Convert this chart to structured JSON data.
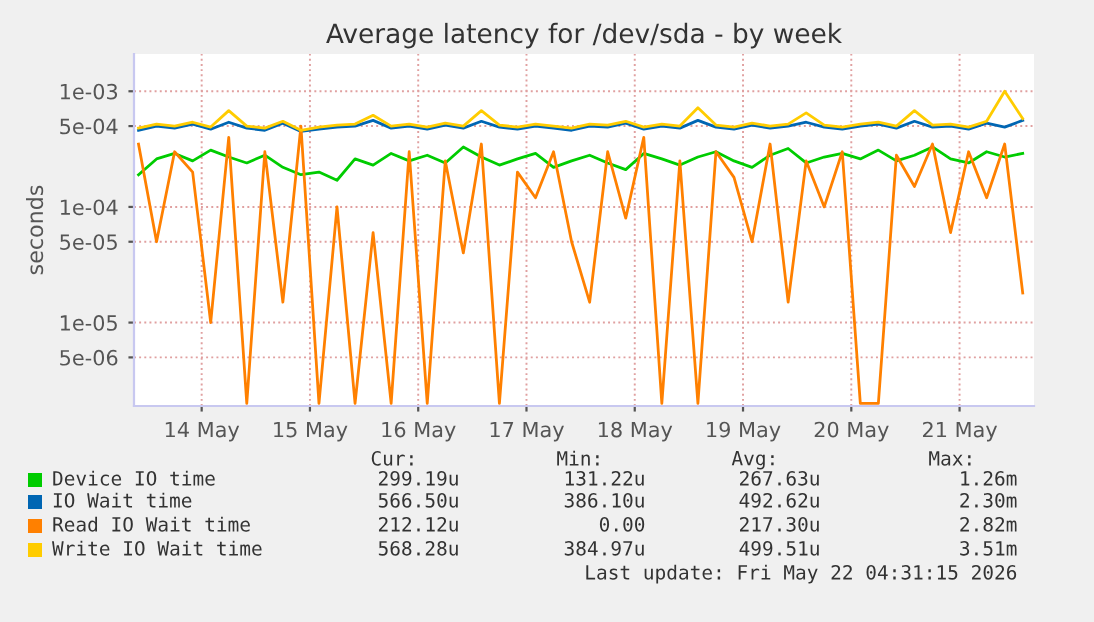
{
  "chart_data": {
    "type": "line",
    "title": "Average latency for /dev/sda - by week",
    "ylabel": "seconds",
    "x": [
      "2026-05-13T22:00",
      "2026-05-14T02:00",
      "2026-05-14T06:00",
      "2026-05-14T10:00",
      "2026-05-14T14:00",
      "2026-05-14T18:00",
      "2026-05-14T22:00",
      "2026-05-15T02:00",
      "2026-05-15T06:00",
      "2026-05-15T10:00",
      "2026-05-15T14:00",
      "2026-05-15T18:00",
      "2026-05-15T22:00",
      "2026-05-16T02:00",
      "2026-05-16T06:00",
      "2026-05-16T10:00",
      "2026-05-16T14:00",
      "2026-05-16T18:00",
      "2026-05-16T22:00",
      "2026-05-17T02:00",
      "2026-05-17T06:00",
      "2026-05-17T10:00",
      "2026-05-17T14:00",
      "2026-05-17T18:00",
      "2026-05-17T22:00",
      "2026-05-18T02:00",
      "2026-05-18T06:00",
      "2026-05-18T10:00",
      "2026-05-18T14:00",
      "2026-05-18T18:00",
      "2026-05-18T22:00",
      "2026-05-19T02:00",
      "2026-05-19T06:00",
      "2026-05-19T10:00",
      "2026-05-19T14:00",
      "2026-05-19T18:00",
      "2026-05-19T22:00",
      "2026-05-20T02:00",
      "2026-05-20T06:00",
      "2026-05-20T10:00",
      "2026-05-20T14:00",
      "2026-05-20T18:00",
      "2026-05-20T22:00",
      "2026-05-21T02:00",
      "2026-05-21T06:00",
      "2026-05-21T10:00",
      "2026-05-21T14:00",
      "2026-05-21T18:00",
      "2026-05-21T22:00",
      "2026-05-22T02:00"
    ],
    "series": [
      {
        "name": "Device IO time",
        "color": "#00cc00",
        "values": [
          0.00019,
          0.00026,
          0.00029,
          0.00025,
          0.00031,
          0.00027,
          0.00024,
          0.00028,
          0.00022,
          0.00019,
          0.0002,
          0.00017,
          0.00026,
          0.00023,
          0.00029,
          0.00025,
          0.00028,
          0.00024,
          0.00033,
          0.00027,
          0.00023,
          0.00026,
          0.00029,
          0.00022,
          0.00025,
          0.00028,
          0.00024,
          0.00021,
          0.00029,
          0.00026,
          0.00023,
          0.00027,
          0.0003,
          0.00025,
          0.00022,
          0.00028,
          0.00032,
          0.00024,
          0.00027,
          0.00029,
          0.00026,
          0.00031,
          0.00025,
          0.00028,
          0.00033,
          0.00026,
          0.00024,
          0.0003,
          0.00027,
          0.00029
        ]
      },
      {
        "name": "IO Wait time",
        "color": "#0066b3",
        "values": [
          0.00046,
          0.0005,
          0.00048,
          0.00052,
          0.00047,
          0.00054,
          0.00048,
          0.00046,
          0.00053,
          0.00045,
          0.00047,
          0.00049,
          0.0005,
          0.00056,
          0.00048,
          0.0005,
          0.00047,
          0.00051,
          0.00048,
          0.00055,
          0.00049,
          0.00047,
          0.0005,
          0.00048,
          0.00046,
          0.0005,
          0.00049,
          0.00053,
          0.00047,
          0.0005,
          0.00048,
          0.00056,
          0.00049,
          0.00047,
          0.00051,
          0.00048,
          0.0005,
          0.00054,
          0.00049,
          0.00047,
          0.0005,
          0.00052,
          0.00048,
          0.00055,
          0.00049,
          0.0005,
          0.00047,
          0.00053,
          0.00049,
          0.00056
        ]
      },
      {
        "name": "Read IO Wait time",
        "color": "#ff8000",
        "values": [
          0.00035,
          5e-05,
          0.0003,
          0.0002,
          1e-05,
          0.0004,
          2e-06,
          0.0003,
          1.5e-05,
          0.0005,
          2e-06,
          0.0001,
          2e-06,
          6e-05,
          2e-06,
          0.0003,
          2e-06,
          0.00025,
          4e-05,
          0.00035,
          2e-06,
          0.0002,
          0.00012,
          0.0003,
          5e-05,
          1.5e-05,
          0.0003,
          8e-05,
          0.0004,
          2e-06,
          0.00025,
          2e-06,
          0.0003,
          0.00018,
          5e-05,
          0.00035,
          1.5e-05,
          0.00025,
          0.0001,
          0.0003,
          2e-06,
          2e-06,
          0.00028,
          0.00015,
          0.00035,
          6e-05,
          0.0003,
          0.00012,
          0.00035,
          1.8e-05
        ]
      },
      {
        "name": "Write IO Wait time",
        "color": "#ffcc00",
        "values": [
          0.00048,
          0.00052,
          0.0005,
          0.00054,
          0.00049,
          0.00068,
          0.0005,
          0.00048,
          0.00055,
          0.00046,
          0.00049,
          0.00051,
          0.00052,
          0.00062,
          0.0005,
          0.00052,
          0.00049,
          0.00053,
          0.0005,
          0.00068,
          0.00051,
          0.00049,
          0.00052,
          0.0005,
          0.00048,
          0.00052,
          0.00051,
          0.00055,
          0.00049,
          0.00052,
          0.0005,
          0.00072,
          0.00051,
          0.00049,
          0.00053,
          0.0005,
          0.00052,
          0.00065,
          0.00051,
          0.00049,
          0.00052,
          0.00054,
          0.0005,
          0.00068,
          0.00051,
          0.00052,
          0.00049,
          0.00055,
          0.001,
          0.00058
        ]
      }
    ],
    "log": "y",
    "ylim": [
      1.9e-06,
      0.0021
    ],
    "yticks": [
      {
        "value": 0.001,
        "label": "1e-03"
      },
      {
        "value": 0.0005,
        "label": "5e-04"
      },
      {
        "value": 0.0001,
        "label": "1e-04"
      },
      {
        "value": 5e-05,
        "label": "5e-05"
      },
      {
        "value": 1e-05,
        "label": "1e-05"
      },
      {
        "value": 5e-06,
        "label": "5e-06"
      }
    ],
    "xlim": [
      "2026-05-13T21:00",
      "2026-05-22T04:30"
    ],
    "xticks": [
      {
        "value": "2026-05-14T12:00",
        "label": "14 May"
      },
      {
        "value": "2026-05-15T12:00",
        "label": "15 May"
      },
      {
        "value": "2026-05-16T12:00",
        "label": "16 May"
      },
      {
        "value": "2026-05-17T12:00",
        "label": "17 May"
      },
      {
        "value": "2026-05-18T12:00",
        "label": "18 May"
      },
      {
        "value": "2026-05-19T12:00",
        "label": "19 May"
      },
      {
        "value": "2026-05-20T12:00",
        "label": "20 May"
      },
      {
        "value": "2026-05-21T12:00",
        "label": "21 May"
      }
    ],
    "grid": true,
    "legend": "bottom",
    "annotations": [
      "Cur:",
      "Min:",
      "Avg:",
      "Max:",
      "299.19u",
      "131.22u",
      "267.63u",
      "1.26m",
      "566.50u",
      "386.10u",
      "492.62u",
      "2.30m",
      "212.12u",
      "0.00",
      "217.30u",
      "2.82m",
      "568.28u",
      "384.97u",
      "499.51u",
      "3.51m",
      "Last update: Fri May 22 04:31:15 2026"
    ]
  }
}
